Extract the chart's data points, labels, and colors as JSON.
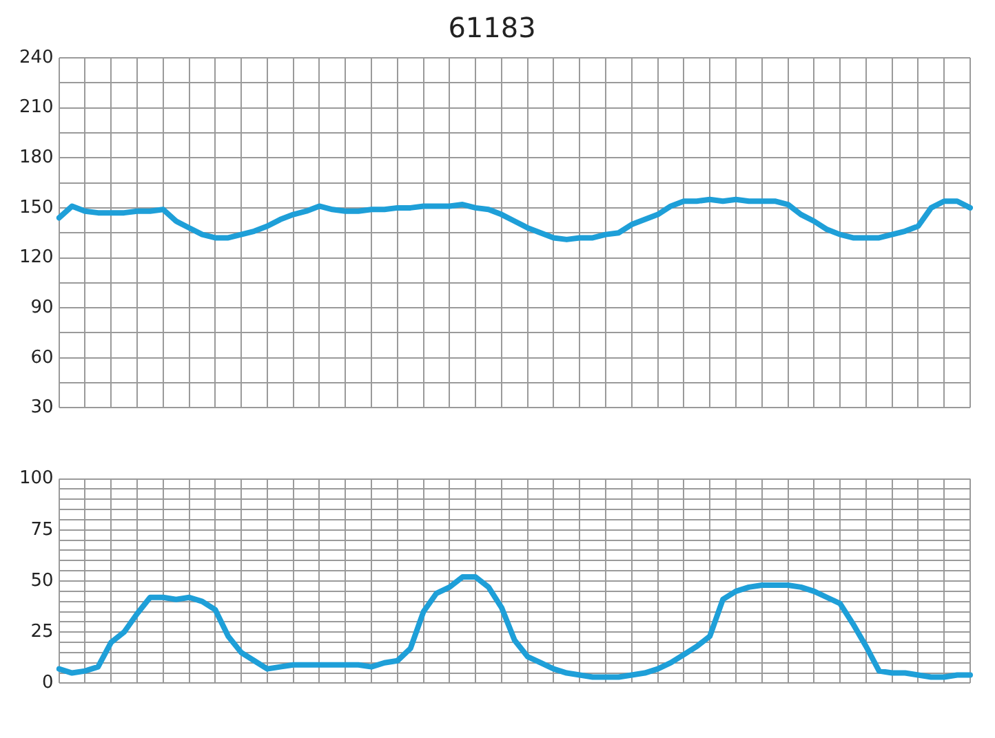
{
  "chart_data": [
    {
      "type": "line",
      "title": "61183",
      "categories": [
        null,
        null,
        null,
        null,
        null,
        null,
        null,
        null,
        null,
        null,
        null,
        null,
        null,
        null,
        null,
        null,
        null,
        null,
        null,
        null,
        null,
        null,
        null,
        null,
        null,
        null,
        null,
        null,
        null,
        null,
        null,
        null,
        null,
        null,
        null,
        null,
        null,
        null,
        null,
        null,
        null,
        null,
        null,
        null,
        null,
        null,
        null,
        null,
        null,
        null,
        null,
        null,
        null,
        null,
        null,
        null,
        null,
        null,
        null,
        null,
        null,
        null,
        null,
        null,
        null,
        null,
        null,
        null,
        null,
        null,
        null
      ],
      "series": [
        {
          "color": "#1e9fd8",
          "values": [
            144,
            151,
            148,
            147,
            147,
            147,
            148,
            148,
            149,
            142,
            138,
            134,
            132,
            132,
            134,
            136,
            139,
            143,
            146,
            148,
            151,
            149,
            148,
            148,
            149,
            149,
            150,
            150,
            151,
            151,
            151,
            152,
            150,
            149,
            146,
            142,
            138,
            135,
            132,
            131,
            132,
            132,
            134,
            135,
            140,
            143,
            146,
            151,
            154,
            154,
            155,
            154,
            155,
            154,
            154,
            154,
            152,
            146,
            142,
            137,
            134,
            132,
            132,
            132,
            134,
            136,
            139,
            150,
            154,
            154,
            150
          ]
        }
      ],
      "ylim": [
        30,
        240
      ],
      "yticks": [
        30,
        {
          "value": 45,
          "label": null
        },
        60,
        {
          "value": 75,
          "label": null
        },
        90,
        {
          "value": 105,
          "label": null
        },
        120,
        {
          "value": 135,
          "label": null
        },
        150,
        {
          "value": 165,
          "label": null
        },
        180,
        {
          "value": 195,
          "label": null
        },
        210,
        {
          "value": 225,
          "label": null
        },
        240
      ],
      "grid": true,
      "legend": false,
      "marker": "none",
      "line_style": "solid"
    },
    {
      "type": "line",
      "categories": [
        null,
        null,
        null,
        null,
        null,
        null,
        null,
        null,
        null,
        null,
        null,
        null,
        null,
        null,
        null,
        null,
        null,
        null,
        null,
        null,
        null,
        null,
        null,
        null,
        null,
        null,
        null,
        null,
        null,
        null,
        null,
        null,
        null,
        null,
        null,
        null,
        null,
        null,
        null,
        null,
        null,
        null,
        null,
        null,
        null,
        null,
        null,
        null,
        null,
        null,
        null,
        null,
        null,
        null,
        null,
        null,
        null,
        null,
        null,
        null,
        null,
        null,
        null,
        null,
        null,
        null,
        null,
        null,
        null,
        null,
        null
      ],
      "series": [
        {
          "color": "#1e9fd8",
          "values": [
            7,
            5,
            6,
            8,
            20,
            25,
            34,
            42,
            42,
            41,
            42,
            40,
            36,
            23,
            15,
            11,
            7,
            8,
            9,
            9,
            9,
            9,
            9,
            9,
            8,
            10,
            11,
            17,
            35,
            44,
            47,
            52,
            52,
            47,
            37,
            21,
            13,
            10,
            7,
            5,
            4,
            3,
            3,
            3,
            4,
            5,
            7,
            10,
            14,
            18,
            23,
            41,
            45,
            47,
            48,
            48,
            48,
            47,
            45,
            42,
            39,
            29,
            18,
            6,
            5,
            5,
            4,
            3,
            3,
            4,
            4
          ]
        }
      ],
      "ylim": [
        0,
        100
      ],
      "yticks": [
        0,
        {
          "value": 5,
          "label": null
        },
        {
          "value": 10,
          "label": null
        },
        {
          "value": 15,
          "label": null
        },
        {
          "value": 20,
          "label": null
        },
        25,
        {
          "value": 30,
          "label": null
        },
        {
          "value": 35,
          "label": null
        },
        {
          "value": 40,
          "label": null
        },
        {
          "value": 45,
          "label": null
        },
        50,
        {
          "value": 55,
          "label": null
        },
        {
          "value": 60,
          "label": null
        },
        {
          "value": 65,
          "label": null
        },
        {
          "value": 70,
          "label": null
        },
        75,
        {
          "value": 80,
          "label": null
        },
        {
          "value": 85,
          "label": null
        },
        {
          "value": 90,
          "label": null
        },
        {
          "value": 95,
          "label": null
        },
        100
      ],
      "grid": true,
      "legend": false,
      "marker": "none",
      "line_style": "solid"
    }
  ]
}
